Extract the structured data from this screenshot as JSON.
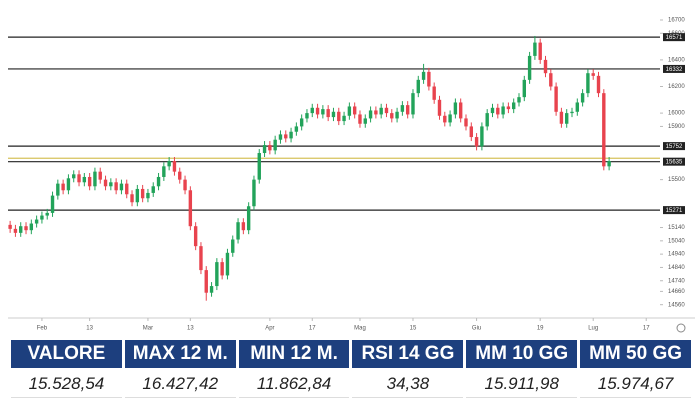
{
  "chart_data": {
    "type": "candlestick",
    "up_color": "#22a35a",
    "down_color": "#e8434e",
    "ohlc": [
      [
        15160,
        15190,
        15100,
        15130
      ],
      [
        15130,
        15160,
        15070,
        15100
      ],
      [
        15100,
        15180,
        15070,
        15150
      ],
      [
        15150,
        15180,
        15090,
        15120
      ],
      [
        15120,
        15200,
        15090,
        15170
      ],
      [
        15170,
        15230,
        15140,
        15200
      ],
      [
        15200,
        15260,
        15170,
        15230
      ],
      [
        15230,
        15280,
        15200,
        15250
      ],
      [
        15250,
        15410,
        15220,
        15380
      ],
      [
        15380,
        15500,
        15350,
        15470
      ],
      [
        15470,
        15500,
        15390,
        15420
      ],
      [
        15420,
        15540,
        15390,
        15510
      ],
      [
        15510,
        15570,
        15480,
        15540
      ],
      [
        15540,
        15570,
        15450,
        15480
      ],
      [
        15480,
        15550,
        15450,
        15520
      ],
      [
        15520,
        15550,
        15420,
        15450
      ],
      [
        15450,
        15590,
        15420,
        15560
      ],
      [
        15560,
        15590,
        15470,
        15500
      ],
      [
        15500,
        15530,
        15420,
        15450
      ],
      [
        15450,
        15510,
        15420,
        15480
      ],
      [
        15480,
        15510,
        15390,
        15420
      ],
      [
        15420,
        15500,
        15390,
        15470
      ],
      [
        15470,
        15500,
        15360,
        15390
      ],
      [
        15390,
        15420,
        15300,
        15330
      ],
      [
        15330,
        15460,
        15300,
        15430
      ],
      [
        15430,
        15460,
        15330,
        15360
      ],
      [
        15360,
        15430,
        15330,
        15400
      ],
      [
        15400,
        15480,
        15370,
        15450
      ],
      [
        15450,
        15550,
        15420,
        15520
      ],
      [
        15520,
        15630,
        15490,
        15600
      ],
      [
        15600,
        15670,
        15570,
        15640
      ],
      [
        15640,
        15670,
        15530,
        15560
      ],
      [
        15560,
        15590,
        15470,
        15500
      ],
      [
        15500,
        15530,
        15390,
        15420
      ],
      [
        15420,
        15450,
        15120,
        15150
      ],
      [
        15150,
        15180,
        14970,
        15000
      ],
      [
        15000,
        15030,
        14790,
        14820
      ],
      [
        14820,
        14850,
        14590,
        14650
      ],
      [
        14650,
        14730,
        14620,
        14700
      ],
      [
        14700,
        14910,
        14670,
        14880
      ],
      [
        14880,
        14910,
        14750,
        14780
      ],
      [
        14780,
        14980,
        14750,
        14950
      ],
      [
        14950,
        15080,
        14920,
        15050
      ],
      [
        15050,
        15210,
        15020,
        15180
      ],
      [
        15180,
        15210,
        15090,
        15120
      ],
      [
        15120,
        15330,
        15090,
        15300
      ],
      [
        15300,
        15530,
        15270,
        15500
      ],
      [
        15500,
        15730,
        15470,
        15700
      ],
      [
        15700,
        15790,
        15670,
        15760
      ],
      [
        15760,
        15790,
        15690,
        15720
      ],
      [
        15720,
        15830,
        15690,
        15800
      ],
      [
        15800,
        15870,
        15770,
        15840
      ],
      [
        15840,
        15870,
        15780,
        15810
      ],
      [
        15810,
        15890,
        15780,
        15860
      ],
      [
        15860,
        15930,
        15830,
        15900
      ],
      [
        15900,
        15990,
        15870,
        15960
      ],
      [
        15960,
        16030,
        15930,
        16000
      ],
      [
        16000,
        16070,
        15970,
        16040
      ],
      [
        16040,
        16070,
        15960,
        15990
      ],
      [
        15990,
        16060,
        15960,
        16030
      ],
      [
        16030,
        16060,
        15940,
        15970
      ],
      [
        15970,
        16040,
        15940,
        16010
      ],
      [
        16010,
        16040,
        15910,
        15940
      ],
      [
        15940,
        16010,
        15910,
        15980
      ],
      [
        15980,
        16080,
        15950,
        16050
      ],
      [
        16050,
        16080,
        15960,
        15990
      ],
      [
        15990,
        16020,
        15890,
        15920
      ],
      [
        15920,
        15990,
        15890,
        15960
      ],
      [
        15960,
        16050,
        15930,
        16020
      ],
      [
        16020,
        16050,
        15960,
        15990
      ],
      [
        15990,
        16070,
        15960,
        16040
      ],
      [
        16040,
        16070,
        15970,
        16000
      ],
      [
        16000,
        16030,
        15930,
        15960
      ],
      [
        15960,
        16040,
        15930,
        16010
      ],
      [
        16010,
        16090,
        15980,
        16060
      ],
      [
        16060,
        16090,
        15960,
        15990
      ],
      [
        15990,
        16180,
        15960,
        16150
      ],
      [
        16150,
        16280,
        16120,
        16250
      ],
      [
        16250,
        16370,
        16220,
        16310
      ],
      [
        16310,
        16340,
        16170,
        16200
      ],
      [
        16200,
        16230,
        16070,
        16100
      ],
      [
        16100,
        16130,
        15950,
        15980
      ],
      [
        15980,
        16010,
        15900,
        15930
      ],
      [
        15930,
        16020,
        15900,
        15990
      ],
      [
        15990,
        16110,
        15960,
        16080
      ],
      [
        16080,
        16110,
        15930,
        15960
      ],
      [
        15960,
        15990,
        15870,
        15900
      ],
      [
        15900,
        15930,
        15790,
        15820
      ],
      [
        15820,
        15850,
        15720,
        15750
      ],
      [
        15750,
        15930,
        15720,
        15900
      ],
      [
        15900,
        16030,
        15870,
        16000
      ],
      [
        16000,
        16070,
        15970,
        16040
      ],
      [
        16040,
        16070,
        15960,
        15990
      ],
      [
        15990,
        16080,
        15960,
        16050
      ],
      [
        16050,
        16080,
        16000,
        16030
      ],
      [
        16030,
        16110,
        16000,
        16080
      ],
      [
        16080,
        16150,
        16050,
        16120
      ],
      [
        16120,
        16280,
        16090,
        16250
      ],
      [
        16250,
        16460,
        16220,
        16430
      ],
      [
        16430,
        16580,
        16400,
        16530
      ],
      [
        16530,
        16560,
        16370,
        16400
      ],
      [
        16400,
        16430,
        16270,
        16300
      ],
      [
        16300,
        16330,
        16170,
        16200
      ],
      [
        16200,
        16230,
        15980,
        16010
      ],
      [
        16010,
        16040,
        15890,
        15920
      ],
      [
        15920,
        16030,
        15890,
        16000
      ],
      [
        16000,
        16040,
        15970,
        16010
      ],
      [
        16010,
        16110,
        15980,
        16080
      ],
      [
        16080,
        16180,
        16050,
        16150
      ],
      [
        16150,
        16330,
        16120,
        16300
      ],
      [
        16300,
        16330,
        16250,
        16280
      ],
      [
        16280,
        16310,
        16120,
        16150
      ],
      [
        16150,
        16180,
        15570,
        15600
      ],
      [
        15600,
        15670,
        15570,
        15640
      ]
    ],
    "xlim": [
      -0.4,
      122.6
    ],
    "xticks": [
      {
        "value": 6,
        "label": "Feb"
      },
      {
        "value": 15,
        "label": "13"
      },
      {
        "value": 26,
        "label": "Mar"
      },
      {
        "value": 34,
        "label": "13"
      },
      {
        "value": 49,
        "label": "Apr"
      },
      {
        "value": 57,
        "label": "17"
      },
      {
        "value": 66,
        "label": "Mag"
      },
      {
        "value": 76,
        "label": "15"
      },
      {
        "value": 88,
        "label": "Giu"
      },
      {
        "value": 100,
        "label": "19"
      },
      {
        "value": 110,
        "label": "Lug"
      },
      {
        "value": 120,
        "label": "17"
      }
    ],
    "ylim": [
      14460,
      16775
    ],
    "yticks": [
      16700,
      16600,
      16400,
      16200,
      16000,
      15900,
      15500,
      15140,
      15040,
      14940,
      14840,
      14740,
      14660,
      14560
    ],
    "levels": [
      16571,
      16332,
      15752,
      15635,
      15271
    ],
    "level_color": "#222222",
    "reference_line": {
      "value": 15661,
      "color": "#d6c35c"
    }
  },
  "table": {
    "headers": [
      "VALORE",
      "MAX 12 M.",
      "MIN 12 M.",
      "RSI 14 GG",
      "MM 10 GG",
      "MM 50 GG"
    ],
    "values": [
      "15.528,54",
      "16.427,42",
      "11.862,84",
      "34,38",
      "15.911,98",
      "15.974,67"
    ]
  }
}
